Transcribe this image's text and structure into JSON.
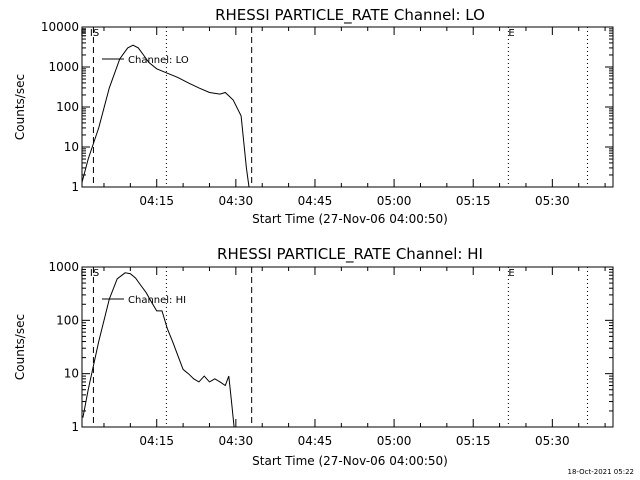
{
  "chart_data": [
    {
      "type": "line",
      "title": "RHESSI PARTICLE_RATE Channel: LO",
      "xlabel": "Start Time (27-Nov-06 04:00:50)",
      "ylabel": "Counts/sec",
      "y_scale": "log",
      "ylim": [
        1,
        10000
      ],
      "xlim": [
        "04:00:50",
        "05:41:30"
      ],
      "x_ticks": [
        "04:15",
        "04:30",
        "04:45",
        "05:00",
        "05:15",
        "05:30"
      ],
      "y_ticks": [
        "1",
        "10",
        "100",
        "1000",
        "10000"
      ],
      "legend": "top-left",
      "series": [
        {
          "name": "Channel: LO",
          "x": [
            "04:00:50",
            "04:02:00",
            "04:04:00",
            "04:06:00",
            "04:08:00",
            "04:09:30",
            "04:10:30",
            "04:11:30",
            "04:12:30",
            "04:13:30",
            "04:15:00",
            "04:17:00",
            "04:19:00",
            "04:21:00",
            "04:23:00",
            "04:25:00",
            "04:27:00",
            "04:28:00",
            "04:29:30",
            "04:31:00",
            "04:32:00",
            "04:32:30"
          ],
          "values": [
            1.3,
            5,
            30,
            300,
            1600,
            3000,
            3500,
            3000,
            2000,
            1300,
            900,
            700,
            550,
            400,
            300,
            230,
            210,
            230,
            150,
            60,
            3,
            1
          ]
        }
      ],
      "markers": [
        {
          "label": "IS",
          "x": [
            "04:03:00",
            "04:33:00"
          ],
          "style": "dashed"
        },
        {
          "label": "E",
          "x": [
            "04:16:50",
            "05:21:40",
            "05:36:40"
          ],
          "style": "dotted"
        }
      ]
    },
    {
      "type": "line",
      "title": "RHESSI PARTICLE_RATE Channel: HI",
      "xlabel": "Start Time (27-Nov-06 04:00:50)",
      "ylabel": "Counts/sec",
      "y_scale": "log",
      "ylim": [
        1,
        1000
      ],
      "xlim": [
        "04:00:50",
        "05:41:30"
      ],
      "x_ticks": [
        "04:15",
        "04:30",
        "04:45",
        "05:00",
        "05:15",
        "05:30"
      ],
      "y_ticks": [
        "1",
        "10",
        "100",
        "1000"
      ],
      "legend": "top-left",
      "series": [
        {
          "name": "Channel: HI",
          "x": [
            "04:01:00",
            "04:02:00",
            "04:04:00",
            "04:06:00",
            "04:07:30",
            "04:09:00",
            "04:10:00",
            "04:11:00",
            "04:12:00",
            "04:13:00",
            "04:14:00",
            "04:15:00",
            "04:16:00",
            "04:17:00",
            "04:18:00",
            "04:19:00",
            "04:20:00",
            "04:21:00",
            "04:22:00",
            "04:23:00",
            "04:24:00",
            "04:25:00",
            "04:26:00",
            "04:27:00",
            "04:28:00",
            "04:28:40",
            "04:29:10",
            "04:29:40"
          ],
          "values": [
            1.5,
            5,
            40,
            250,
            600,
            780,
            750,
            620,
            450,
            330,
            220,
            150,
            150,
            70,
            40,
            22,
            12,
            10,
            8,
            7,
            9,
            7,
            8,
            7,
            6,
            9,
            3,
            1
          ]
        }
      ],
      "markers": [
        {
          "label": "IS",
          "x": [
            "04:03:00",
            "04:33:00"
          ],
          "style": "dashed"
        },
        {
          "label": "E",
          "x": [
            "04:16:50",
            "05:21:40",
            "05:36:40"
          ],
          "style": "dotted"
        }
      ]
    }
  ],
  "footer": {
    "timestamp": "18-Oct-2021 05:22"
  }
}
